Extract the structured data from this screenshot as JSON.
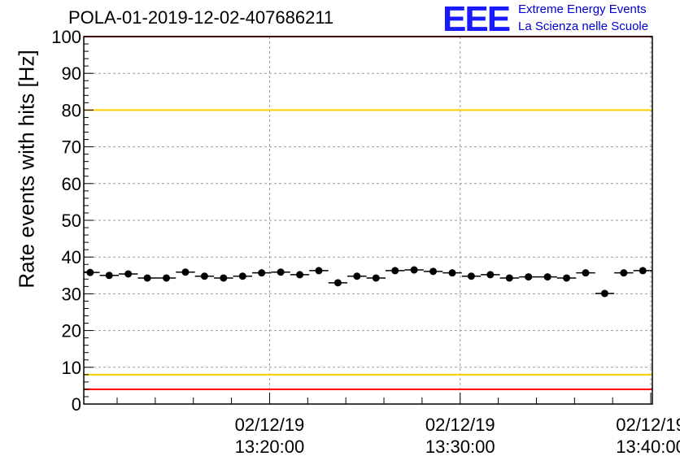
{
  "title": "POLA-01-2019-12-02-407686211",
  "logo": {
    "mark": "EEE",
    "line1": "Extreme Energy Events",
    "line2": "La Scienza nelle Scuole",
    "color": "#1a1aff"
  },
  "chart_data": {
    "type": "scatter",
    "title": "POLA-01-2019-12-02-407686211",
    "ylabel": "Rate events with hits [Hz]",
    "xlabel": "",
    "ylim": [
      0,
      100
    ],
    "yticks": [
      0,
      10,
      20,
      30,
      40,
      50,
      60,
      70,
      80,
      90,
      100
    ],
    "xlim": [
      "13:10:15",
      "13:40:05"
    ],
    "xticks": [
      {
        "date": "02/12/19",
        "time": "13:20:00"
      },
      {
        "date": "02/12/19",
        "time": "13:30:00"
      },
      {
        "date": "02/12/19",
        "time": "13:40:00"
      }
    ],
    "grid": true,
    "reference_lines": [
      {
        "y": 100,
        "color": "#ff0000"
      },
      {
        "y": 80,
        "color": "#ffcc00"
      },
      {
        "y": 8,
        "color": "#ffcc00"
      },
      {
        "y": 4,
        "color": "#ff0000"
      }
    ],
    "series": [
      {
        "marker_color": "#000000",
        "points": [
          {
            "x": "13:10:35",
            "y": 35.8
          },
          {
            "x": "13:11:35",
            "y": 35.0
          },
          {
            "x": "13:12:35",
            "y": 35.4
          },
          {
            "x": "13:13:35",
            "y": 34.3
          },
          {
            "x": "13:14:35",
            "y": 34.3
          },
          {
            "x": "13:15:35",
            "y": 35.9
          },
          {
            "x": "13:16:35",
            "y": 34.8
          },
          {
            "x": "13:17:35",
            "y": 34.3
          },
          {
            "x": "13:18:35",
            "y": 34.8
          },
          {
            "x": "13:19:35",
            "y": 35.7
          },
          {
            "x": "13:20:35",
            "y": 35.9
          },
          {
            "x": "13:21:35",
            "y": 35.2
          },
          {
            "x": "13:22:35",
            "y": 36.3
          },
          {
            "x": "13:23:35",
            "y": 33.0
          },
          {
            "x": "13:24:35",
            "y": 34.8
          },
          {
            "x": "13:25:35",
            "y": 34.3
          },
          {
            "x": "13:26:35",
            "y": 36.3
          },
          {
            "x": "13:27:35",
            "y": 36.5
          },
          {
            "x": "13:28:35",
            "y": 36.1
          },
          {
            "x": "13:29:35",
            "y": 35.7
          },
          {
            "x": "13:30:35",
            "y": 34.8
          },
          {
            "x": "13:31:35",
            "y": 35.2
          },
          {
            "x": "13:32:35",
            "y": 34.3
          },
          {
            "x": "13:33:35",
            "y": 34.6
          },
          {
            "x": "13:34:35",
            "y": 34.6
          },
          {
            "x": "13:35:35",
            "y": 34.3
          },
          {
            "x": "13:36:35",
            "y": 35.7
          },
          {
            "x": "13:37:35",
            "y": 30.1
          },
          {
            "x": "13:38:35",
            "y": 35.7
          },
          {
            "x": "13:39:35",
            "y": 36.3
          }
        ]
      }
    ]
  }
}
